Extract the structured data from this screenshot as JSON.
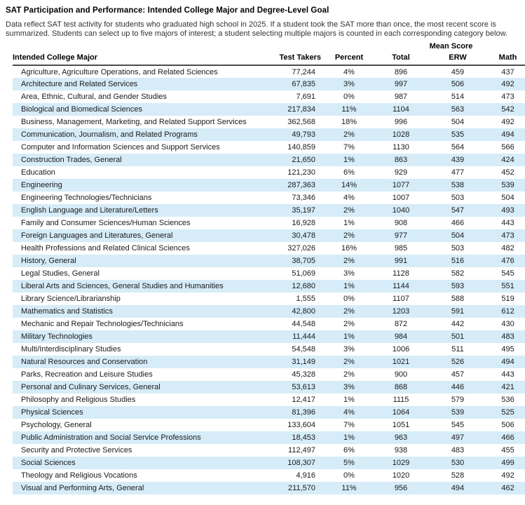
{
  "title": "SAT Participation and Performance: Intended College Major and Degree-Level Goal",
  "description": "Data reflect SAT test activity for students who graduated high school in 2025. If a student took the SAT more than once, the most recent score is summarized. Students can select up to five majors of interest; a student selecting multiple majors is counted in each corresponding category below.",
  "colors": {
    "accent": "#29a3dc",
    "stripe": "#d6ecf8",
    "rule": "#4d4d4d"
  },
  "table": {
    "mean_score_label": "Mean Score",
    "headers": {
      "major": "Intended College Major",
      "test_takers": "Test Takers",
      "percent": "Percent",
      "total": "Total",
      "erw": "ERW",
      "math": "Math"
    },
    "rows": [
      {
        "major": "Agriculture, Agriculture Operations, and Related Sciences",
        "test_takers": "77,244",
        "percent": "4%",
        "total": "896",
        "erw": "459",
        "math": "437"
      },
      {
        "major": "Architecture and Related Services",
        "test_takers": "67,835",
        "percent": "3%",
        "total": "997",
        "erw": "506",
        "math": "492"
      },
      {
        "major": "Area, Ethnic, Cultural, and Gender Studies",
        "test_takers": "7,691",
        "percent": "0%",
        "total": "987",
        "erw": "514",
        "math": "473"
      },
      {
        "major": "Biological and Biomedical Sciences",
        "test_takers": "217,834",
        "percent": "11%",
        "total": "1104",
        "erw": "563",
        "math": "542"
      },
      {
        "major": "Business, Management, Marketing, and Related Support Services",
        "test_takers": "362,568",
        "percent": "18%",
        "total": "996",
        "erw": "504",
        "math": "492"
      },
      {
        "major": "Communication, Journalism, and Related Programs",
        "test_takers": "49,793",
        "percent": "2%",
        "total": "1028",
        "erw": "535",
        "math": "494"
      },
      {
        "major": "Computer and Information Sciences and Support Services",
        "test_takers": "140,859",
        "percent": "7%",
        "total": "1130",
        "erw": "564",
        "math": "566"
      },
      {
        "major": "Construction Trades, General",
        "test_takers": "21,650",
        "percent": "1%",
        "total": "863",
        "erw": "439",
        "math": "424"
      },
      {
        "major": "Education",
        "test_takers": "121,230",
        "percent": "6%",
        "total": "929",
        "erw": "477",
        "math": "452"
      },
      {
        "major": "Engineering",
        "test_takers": "287,363",
        "percent": "14%",
        "total": "1077",
        "erw": "538",
        "math": "539"
      },
      {
        "major": "Engineering Technologies/Technicians",
        "test_takers": "73,346",
        "percent": "4%",
        "total": "1007",
        "erw": "503",
        "math": "504"
      },
      {
        "major": "English Language and Literature/Letters",
        "test_takers": "35,197",
        "percent": "2%",
        "total": "1040",
        "erw": "547",
        "math": "493"
      },
      {
        "major": "Family and Consumer Sciences/Human Sciences",
        "test_takers": "16,928",
        "percent": "1%",
        "total": "908",
        "erw": "466",
        "math": "443"
      },
      {
        "major": "Foreign Languages and Literatures, General",
        "test_takers": "30,478",
        "percent": "2%",
        "total": "977",
        "erw": "504",
        "math": "473"
      },
      {
        "major": "Health Professions and Related Clinical Sciences",
        "test_takers": "327,026",
        "percent": "16%",
        "total": "985",
        "erw": "503",
        "math": "482"
      },
      {
        "major": "History, General",
        "test_takers": "38,705",
        "percent": "2%",
        "total": "991",
        "erw": "516",
        "math": "476"
      },
      {
        "major": "Legal Studies, General",
        "test_takers": "51,069",
        "percent": "3%",
        "total": "1128",
        "erw": "582",
        "math": "545"
      },
      {
        "major": "Liberal Arts and Sciences, General Studies and Humanities",
        "test_takers": "12,680",
        "percent": "1%",
        "total": "1144",
        "erw": "593",
        "math": "551"
      },
      {
        "major": "Library Science/Librarianship",
        "test_takers": "1,555",
        "percent": "0%",
        "total": "1107",
        "erw": "588",
        "math": "519"
      },
      {
        "major": "Mathematics and Statistics",
        "test_takers": "42,800",
        "percent": "2%",
        "total": "1203",
        "erw": "591",
        "math": "612"
      },
      {
        "major": "Mechanic and Repair Technologies/Technicians",
        "test_takers": "44,548",
        "percent": "2%",
        "total": "872",
        "erw": "442",
        "math": "430"
      },
      {
        "major": "Military Technologies",
        "test_takers": "11,444",
        "percent": "1%",
        "total": "984",
        "erw": "501",
        "math": "483"
      },
      {
        "major": "Multi/Interdisciplinary Studies",
        "test_takers": "54,548",
        "percent": "3%",
        "total": "1006",
        "erw": "511",
        "math": "495"
      },
      {
        "major": "Natural Resources and Conservation",
        "test_takers": "31,149",
        "percent": "2%",
        "total": "1021",
        "erw": "526",
        "math": "494"
      },
      {
        "major": "Parks, Recreation and Leisure Studies",
        "test_takers": "45,328",
        "percent": "2%",
        "total": "900",
        "erw": "457",
        "math": "443"
      },
      {
        "major": "Personal and Culinary Services, General",
        "test_takers": "53,613",
        "percent": "3%",
        "total": "868",
        "erw": "446",
        "math": "421"
      },
      {
        "major": "Philosophy and Religious Studies",
        "test_takers": "12,417",
        "percent": "1%",
        "total": "1115",
        "erw": "579",
        "math": "536"
      },
      {
        "major": "Physical Sciences",
        "test_takers": "81,396",
        "percent": "4%",
        "total": "1064",
        "erw": "539",
        "math": "525"
      },
      {
        "major": "Psychology, General",
        "test_takers": "133,604",
        "percent": "7%",
        "total": "1051",
        "erw": "545",
        "math": "506"
      },
      {
        "major": "Public Administration and Social Service Professions",
        "test_takers": "18,453",
        "percent": "1%",
        "total": "963",
        "erw": "497",
        "math": "466"
      },
      {
        "major": "Security and Protective Services",
        "test_takers": "112,497",
        "percent": "6%",
        "total": "938",
        "erw": "483",
        "math": "455"
      },
      {
        "major": "Social Sciences",
        "test_takers": "108,307",
        "percent": "5%",
        "total": "1029",
        "erw": "530",
        "math": "499"
      },
      {
        "major": "Theology and Religious Vocations",
        "test_takers": "4,916",
        "percent": "0%",
        "total": "1020",
        "erw": "528",
        "math": "492"
      },
      {
        "major": "Visual and Performing Arts, General",
        "test_takers": "211,570",
        "percent": "11%",
        "total": "956",
        "erw": "494",
        "math": "462"
      }
    ]
  }
}
